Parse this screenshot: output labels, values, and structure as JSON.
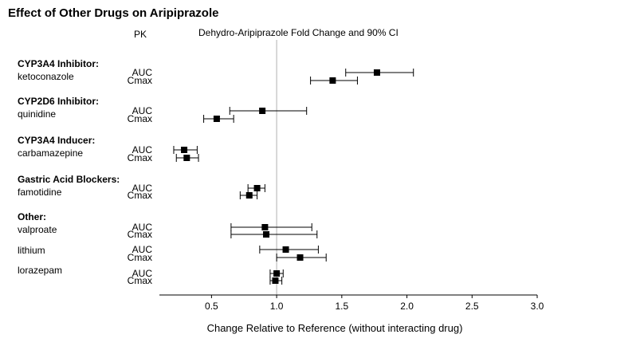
{
  "chart_data": {
    "type": "forest",
    "title": "Effect of Other Drugs on Aripiprazole",
    "pk_header": "PK",
    "subtitle": "Dehydro-Aripiprazole Fold Change and 90% CI",
    "xlabel": "Change Relative to Reference (without interacting drug)",
    "xlim": [
      0.1,
      3.0
    ],
    "x_ticks": [
      "0.5",
      "1.0",
      "1.5",
      "2.0",
      "2.5",
      "3.0"
    ],
    "x_tick_values": [
      0.5,
      1.0,
      1.5,
      2.0,
      2.5,
      3.0
    ],
    "reference_line": 1.0,
    "groups": [
      {
        "header": "CYP3A4 Inhibitor:",
        "drug": "ketoconazole",
        "rows": [
          {
            "pk": "AUC",
            "estimate": 1.77,
            "lower": 1.53,
            "upper": 2.05
          },
          {
            "pk": "Cmax",
            "estimate": 1.43,
            "lower": 1.26,
            "upper": 1.62
          }
        ]
      },
      {
        "header": "CYP2D6 Inhibitor:",
        "drug": "quinidine",
        "rows": [
          {
            "pk": "AUC",
            "estimate": 0.89,
            "lower": 0.64,
            "upper": 1.23
          },
          {
            "pk": "Cmax",
            "estimate": 0.54,
            "lower": 0.44,
            "upper": 0.67
          }
        ]
      },
      {
        "header": "CYP3A4 Inducer:",
        "drug": "carbamazepine",
        "rows": [
          {
            "pk": "AUC",
            "estimate": 0.29,
            "lower": 0.21,
            "upper": 0.39
          },
          {
            "pk": "Cmax",
            "estimate": 0.31,
            "lower": 0.23,
            "upper": 0.4
          }
        ]
      },
      {
        "header": "Gastric Acid Blockers:",
        "drug": "famotidine",
        "rows": [
          {
            "pk": "AUC",
            "estimate": 0.85,
            "lower": 0.78,
            "upper": 0.91
          },
          {
            "pk": "Cmax",
            "estimate": 0.79,
            "lower": 0.72,
            "upper": 0.85
          }
        ]
      },
      {
        "header": "Other:",
        "drug": "valproate",
        "rows": [
          {
            "pk": "AUC",
            "estimate": 0.91,
            "lower": 0.65,
            "upper": 1.27
          },
          {
            "pk": "Cmax",
            "estimate": 0.92,
            "lower": 0.65,
            "upper": 1.31
          }
        ]
      },
      {
        "header": "",
        "drug": "lithium",
        "rows": [
          {
            "pk": "AUC",
            "estimate": 1.07,
            "lower": 0.87,
            "upper": 1.32
          },
          {
            "pk": "Cmax",
            "estimate": 1.18,
            "lower": 1.0,
            "upper": 1.38
          }
        ]
      },
      {
        "header": "",
        "drug": "lorazepam",
        "rows": [
          {
            "pk": "AUC",
            "estimate": 1.0,
            "lower": 0.95,
            "upper": 1.05
          },
          {
            "pk": "Cmax",
            "estimate": 0.99,
            "lower": 0.95,
            "upper": 1.04
          }
        ]
      }
    ]
  }
}
